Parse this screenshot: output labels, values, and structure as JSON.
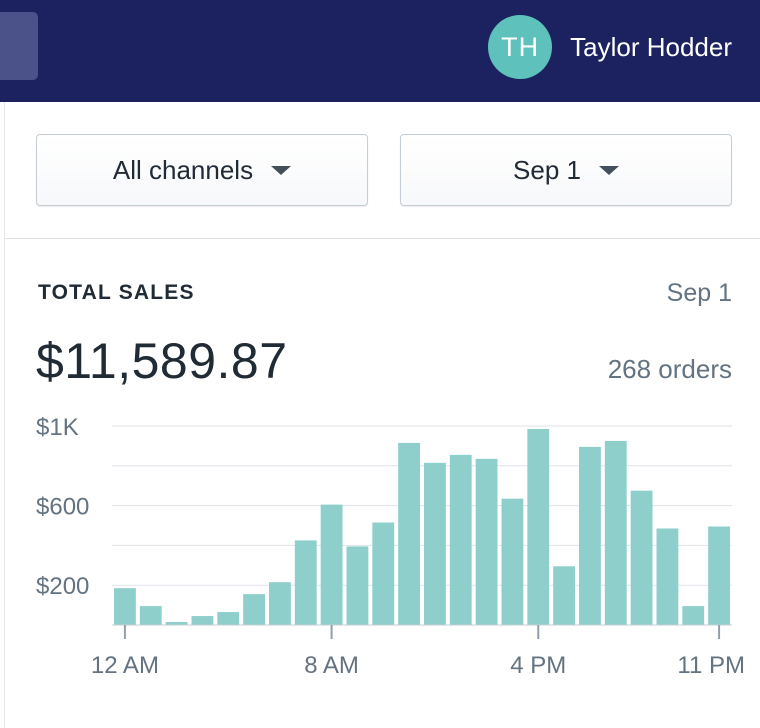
{
  "header": {
    "user": {
      "initials": "TH",
      "name": "Taylor Hodder"
    }
  },
  "filters": {
    "channel": "All channels",
    "date": "Sep 1"
  },
  "card": {
    "title": "TOTAL SALES",
    "date": "Sep 1",
    "total": "$11,589.87",
    "orders": "268 orders"
  },
  "colors": {
    "topbar": "#1c2260",
    "avatar": "#5fc1bb",
    "bar": "#8ecfcb"
  },
  "chart_data": {
    "type": "bar",
    "xlabel": "",
    "ylabel": "",
    "ylim": [
      0,
      1000
    ],
    "y_ticks": [
      1000,
      800,
      600,
      400,
      200
    ],
    "y_tick_labels": {
      "1000": "$1K",
      "600": "$600",
      "200": "$200"
    },
    "grid": true,
    "x_tick_labels": [
      {
        "hour": 0,
        "label": "12 AM"
      },
      {
        "hour": 8,
        "label": "8 AM"
      },
      {
        "hour": 16,
        "label": "4 PM"
      },
      {
        "hour": 23,
        "label": "11 PM"
      }
    ],
    "categories": [
      "12 AM",
      "1 AM",
      "2 AM",
      "3 AM",
      "4 AM",
      "5 AM",
      "6 AM",
      "7 AM",
      "8 AM",
      "9 AM",
      "10 AM",
      "11 AM",
      "12 PM",
      "1 PM",
      "2 PM",
      "3 PM",
      "4 PM",
      "5 PM",
      "6 PM",
      "7 PM",
      "8 PM",
      "9 PM",
      "10 PM",
      "11 PM"
    ],
    "values": [
      185,
      95,
      15,
      45,
      65,
      155,
      215,
      425,
      605,
      395,
      515,
      915,
      815,
      855,
      835,
      635,
      985,
      295,
      895,
      925,
      675,
      485,
      95,
      495
    ]
  }
}
